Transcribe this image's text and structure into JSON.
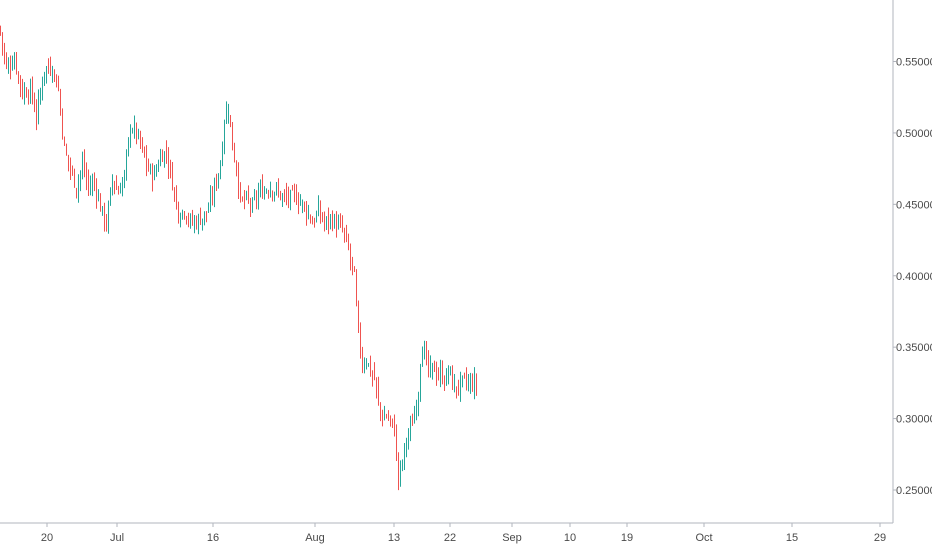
{
  "chart_data": {
    "type": "candlestick",
    "x_ticks": [
      "20",
      "Jul",
      "16",
      "Aug",
      "13",
      "22",
      "Sep",
      "10",
      "19",
      "Oct",
      "15",
      "29"
    ],
    "y_ticks": [
      "0.25000",
      "0.30000",
      "0.35000",
      "0.40000",
      "0.45000",
      "0.50000",
      "0.55000"
    ],
    "y_tick_values": [
      0.25,
      0.3,
      0.35,
      0.4,
      0.45,
      0.5,
      0.55
    ],
    "ylim": [
      0.225,
      0.595
    ],
    "grid": false,
    "colors": {
      "up": "#26a69a",
      "down": "#ef5350",
      "axis": "#b2b5be",
      "label": "#4a4a4a"
    },
    "close_path": [
      [
        0,
        0.57
      ],
      [
        6,
        0.545
      ],
      [
        14,
        0.552
      ],
      [
        22,
        0.528
      ],
      [
        30,
        0.53
      ],
      [
        36,
        0.512
      ],
      [
        44,
        0.545
      ],
      [
        52,
        0.546
      ],
      [
        58,
        0.53
      ],
      [
        64,
        0.488
      ],
      [
        70,
        0.475
      ],
      [
        76,
        0.462
      ],
      [
        82,
        0.478
      ],
      [
        88,
        0.462
      ],
      [
        94,
        0.465
      ],
      [
        100,
        0.448
      ],
      [
        106,
        0.436
      ],
      [
        112,
        0.468
      ],
      [
        118,
        0.458
      ],
      [
        124,
        0.47
      ],
      [
        130,
        0.505
      ],
      [
        136,
        0.5
      ],
      [
        142,
        0.487
      ],
      [
        148,
        0.474
      ],
      [
        154,
        0.47
      ],
      [
        160,
        0.484
      ],
      [
        166,
        0.486
      ],
      [
        172,
        0.465
      ],
      [
        178,
        0.444
      ],
      [
        184,
        0.446
      ],
      [
        190,
        0.437
      ],
      [
        196,
        0.438
      ],
      [
        202,
        0.441
      ],
      [
        208,
        0.446
      ],
      [
        214,
        0.462
      ],
      [
        220,
        0.478
      ],
      [
        224,
        0.51
      ],
      [
        228,
        0.518
      ],
      [
        232,
        0.49
      ],
      [
        236,
        0.476
      ],
      [
        240,
        0.452
      ],
      [
        246,
        0.453
      ],
      [
        252,
        0.448
      ],
      [
        258,
        0.458
      ],
      [
        264,
        0.46
      ],
      [
        270,
        0.462
      ],
      [
        276,
        0.459
      ],
      [
        282,
        0.455
      ],
      [
        288,
        0.454
      ],
      [
        294,
        0.456
      ],
      [
        300,
        0.452
      ],
      [
        306,
        0.446
      ],
      [
        312,
        0.437
      ],
      [
        318,
        0.445
      ],
      [
        324,
        0.437
      ],
      [
        330,
        0.44
      ],
      [
        336,
        0.436
      ],
      [
        342,
        0.432
      ],
      [
        348,
        0.418
      ],
      [
        354,
        0.398
      ],
      [
        358,
        0.358
      ],
      [
        362,
        0.338
      ],
      [
        366,
        0.342
      ],
      [
        370,
        0.333
      ],
      [
        374,
        0.328
      ],
      [
        378,
        0.31
      ],
      [
        382,
        0.3
      ],
      [
        386,
        0.302
      ],
      [
        390,
        0.298
      ],
      [
        394,
        0.292
      ],
      [
        398,
        0.258
      ],
      [
        402,
        0.27
      ],
      [
        406,
        0.286
      ],
      [
        410,
        0.292
      ],
      [
        414,
        0.304
      ],
      [
        418,
        0.32
      ],
      [
        421,
        0.352
      ],
      [
        425,
        0.343
      ],
      [
        429,
        0.33
      ],
      [
        433,
        0.337
      ],
      [
        437,
        0.33
      ],
      [
        441,
        0.331
      ],
      [
        445,
        0.326
      ],
      [
        449,
        0.336
      ],
      [
        453,
        0.32
      ],
      [
        457,
        0.322
      ],
      [
        461,
        0.325
      ],
      [
        465,
        0.326
      ],
      [
        469,
        0.323
      ],
      [
        473,
        0.325
      ],
      [
        477,
        0.323
      ]
    ]
  }
}
